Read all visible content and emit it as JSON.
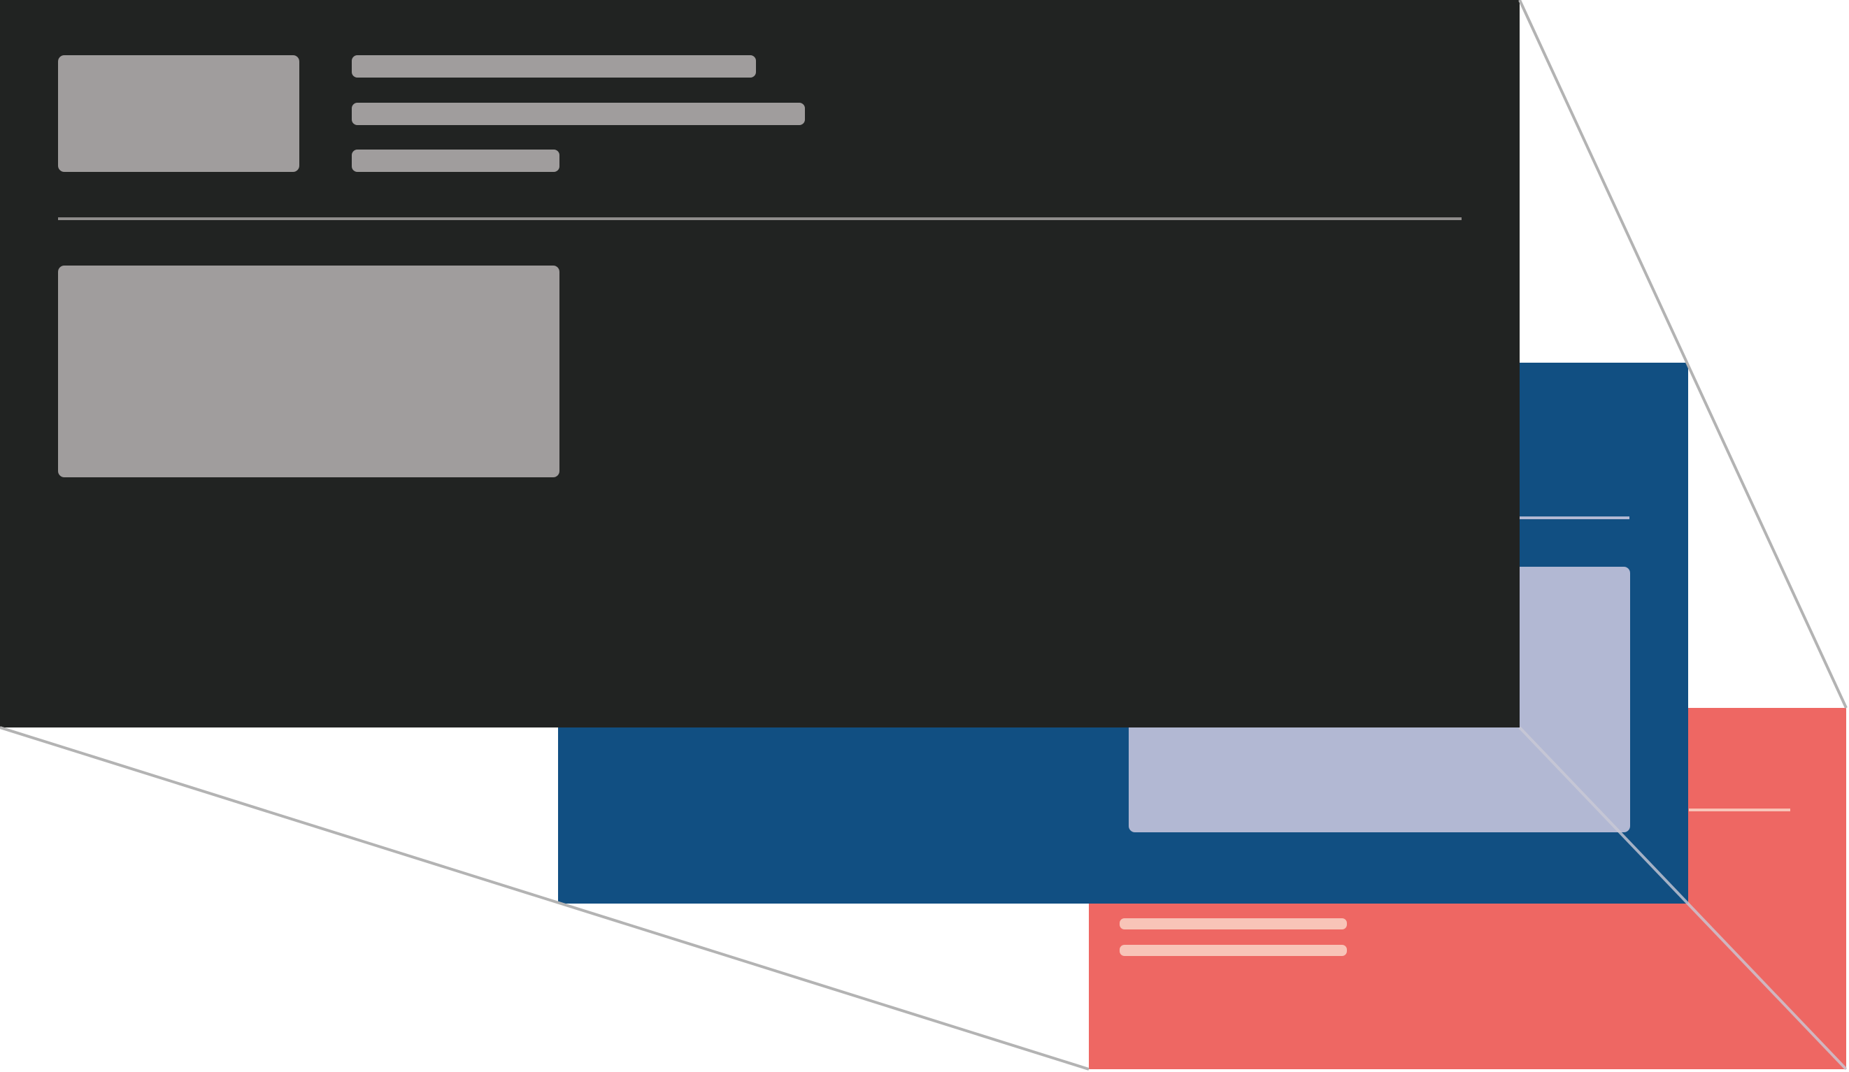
{
  "figure": {
    "kind": "layered wireframe cards in perspective",
    "background_color": "#ffffff",
    "connector_color": "#b3b3b3",
    "layers": [
      {
        "id": "back",
        "color": "#ee6763",
        "placeholder_color": "#f8c4b8",
        "placeholders": [
          "divider",
          "line",
          "line"
        ]
      },
      {
        "id": "middle",
        "color": "#114f82",
        "placeholder_color": "#b2b8d3",
        "placeholders": [
          "divider",
          "block"
        ]
      },
      {
        "id": "front",
        "color": "#212322",
        "placeholder_color": "#a09d9d",
        "divider_color": "#8f8d8c",
        "placeholders": [
          "thumbnail",
          "line",
          "line",
          "line",
          "divider",
          "block"
        ]
      }
    ]
  }
}
